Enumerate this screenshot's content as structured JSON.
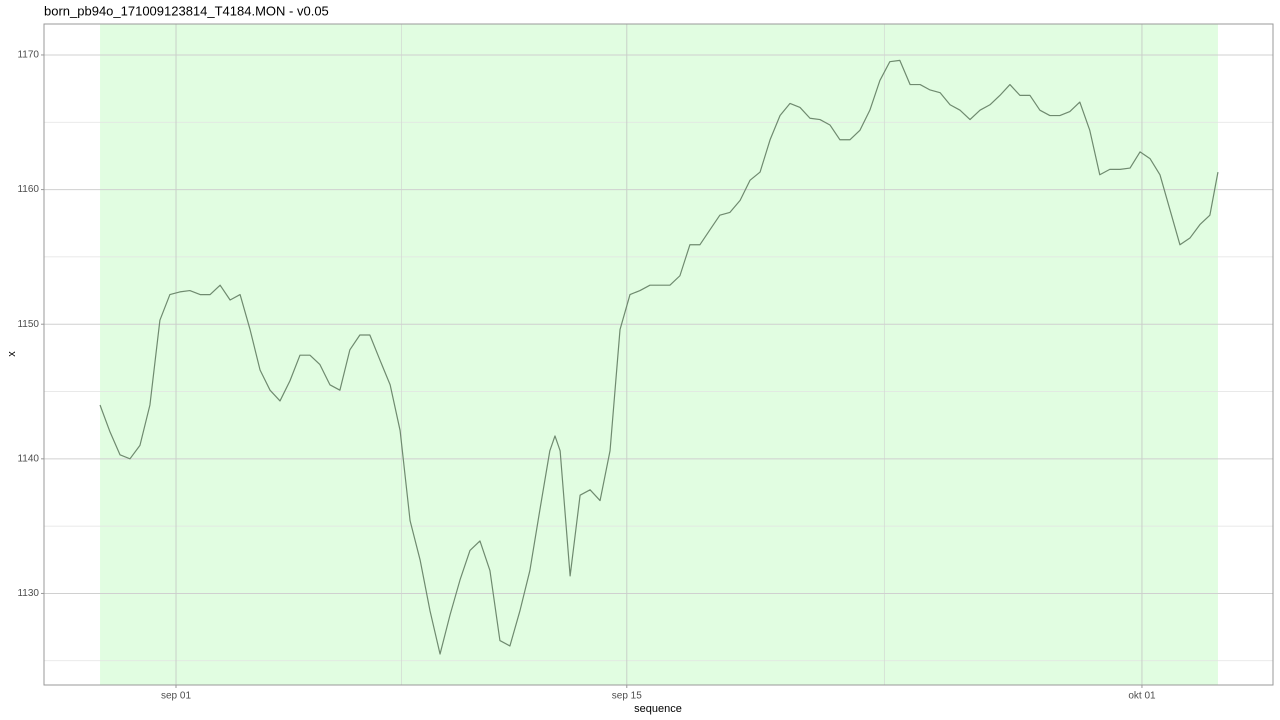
{
  "chart_data": {
    "type": "line",
    "title": "born_pb94o_171009123814_T4184.MON - v0.05",
    "x_label": "sequence",
    "y_label": "x",
    "band_color": "#e1fde1",
    "grid": true,
    "xlim": [
      239.9,
      278.07
    ],
    "ylim": [
      1123.2,
      1172.3
    ],
    "xticks": [
      {
        "value": 244,
        "label": "sep 01"
      },
      {
        "value": 258,
        "label": "sep 15"
      },
      {
        "value": 274,
        "label": "okt 01"
      }
    ],
    "x_minor_ticks": [
      251,
      266
    ],
    "yticks": [
      1130,
      1140,
      1150,
      1160,
      1170
    ],
    "y_minor_ticks": [
      1125,
      1135,
      1145,
      1155,
      1165
    ],
    "x": [
      241.64,
      241.95,
      242.26,
      242.57,
      242.88,
      243.19,
      243.5,
      243.81,
      244.12,
      244.43,
      244.75,
      245.06,
      245.37,
      245.68,
      245.99,
      246.3,
      246.61,
      246.92,
      247.23,
      247.54,
      247.85,
      248.16,
      248.47,
      248.78,
      249.09,
      249.4,
      249.71,
      250.02,
      250.34,
      250.65,
      250.96,
      251.27,
      251.58,
      251.89,
      252.2,
      252.51,
      252.82,
      253.13,
      253.44,
      253.75,
      254.06,
      254.37,
      254.68,
      254.99,
      255.3,
      255.61,
      255.77,
      255.93,
      256.24,
      256.55,
      256.86,
      257.17,
      257.48,
      257.79,
      258.1,
      258.41,
      258.72,
      259.03,
      259.34,
      259.65,
      259.96,
      260.27,
      260.58,
      260.89,
      261.2,
      261.52,
      261.83,
      262.14,
      262.45,
      262.76,
      263.07,
      263.38,
      263.69,
      264.0,
      264.31,
      264.62,
      264.93,
      265.24,
      265.55,
      265.86,
      266.17,
      266.48,
      266.8,
      267.11,
      267.42,
      267.73,
      268.04,
      268.35,
      268.66,
      268.97,
      269.28,
      269.59,
      269.9,
      270.21,
      270.52,
      270.83,
      271.14,
      271.45,
      271.76,
      272.07,
      272.38,
      272.69,
      273.0,
      273.32,
      273.63,
      273.94,
      274.25,
      274.56,
      274.87,
      275.18,
      275.49,
      275.8,
      276.11,
      276.36
    ],
    "series": [
      {
        "color": "#6f8a6f",
        "values": [
          1144.0,
          1142.0,
          1140.3,
          1140.0,
          1141.0,
          1144.0,
          1150.3,
          1152.2,
          1152.4,
          1152.5,
          1152.2,
          1152.2,
          1152.9,
          1151.8,
          1152.2,
          1149.6,
          1146.6,
          1145.1,
          1144.3,
          1145.8,
          1147.7,
          1147.7,
          1147.0,
          1145.5,
          1145.1,
          1148.1,
          1149.2,
          1149.2,
          1147.3,
          1145.5,
          1142.1,
          1135.4,
          1132.5,
          1128.7,
          1125.5,
          1128.4,
          1131.0,
          1133.2,
          1133.9,
          1131.7,
          1126.5,
          1126.1,
          1128.7,
          1131.7,
          1136.2,
          1140.6,
          1141.7,
          1140.6,
          1131.3,
          1137.3,
          1137.7,
          1136.9,
          1140.6,
          1149.6,
          1152.2,
          1152.5,
          1152.9,
          1152.9,
          1152.9,
          1153.6,
          1155.9,
          1155.9,
          1157.0,
          1158.1,
          1158.3,
          1159.2,
          1160.7,
          1161.3,
          1163.7,
          1165.5,
          1166.4,
          1166.1,
          1165.3,
          1165.2,
          1164.8,
          1163.7,
          1163.7,
          1164.4,
          1165.9,
          1168.1,
          1169.5,
          1169.6,
          1167.8,
          1167.8,
          1167.4,
          1167.2,
          1166.3,
          1165.9,
          1165.2,
          1165.9,
          1166.3,
          1167.0,
          1167.8,
          1167.0,
          1167.0,
          1165.9,
          1165.5,
          1165.5,
          1165.8,
          1166.5,
          1164.4,
          1161.1,
          1161.5,
          1161.5,
          1161.6,
          1162.8,
          1162.3,
          1161.1,
          1158.5,
          1155.9,
          1156.4,
          1157.4,
          1158.1,
          1161.3
        ]
      }
    ]
  }
}
